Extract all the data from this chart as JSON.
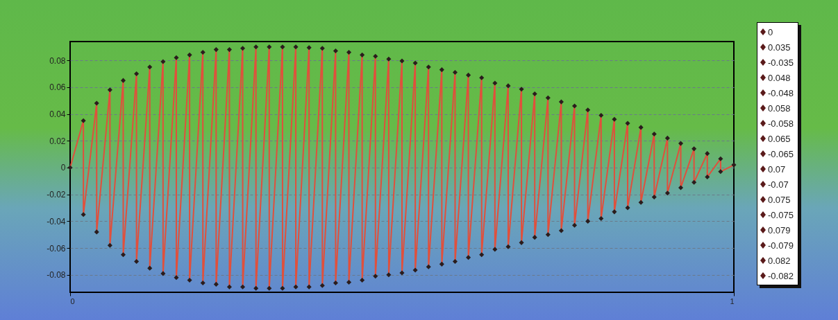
{
  "chart_data": {
    "type": "line",
    "marker": "diamond",
    "grid": "y",
    "xlim": [
      0,
      1
    ],
    "xticks": [
      0,
      1
    ],
    "ylim": [
      -0.093,
      0.094
    ],
    "yticks": [
      -0.08,
      -0.06,
      -0.04,
      -0.02,
      0,
      0.02,
      0.04,
      0.06,
      0.08
    ],
    "annotations": [
      "0",
      "0.035",
      "-0.035",
      "0.048",
      "-0.048",
      "0.058",
      "-0.058",
      "0.065",
      "-0.065",
      "0.07",
      "-0.07",
      "0.075",
      "-0.075",
      "0.079",
      "-0.079",
      "0.082",
      "-0.082"
    ],
    "series": [
      {
        "color": "#e0503c",
        "x": [
          0,
          0.02,
          0.02,
          0.04,
          0.04,
          0.06,
          0.06,
          0.08,
          0.08,
          0.1,
          0.1,
          0.12,
          0.12,
          0.14,
          0.14,
          0.16,
          0.16,
          0.18,
          0.18,
          0.2,
          0.2,
          0.22,
          0.22,
          0.24,
          0.24,
          0.26,
          0.26,
          0.28,
          0.28,
          0.3,
          0.3,
          0.32,
          0.32,
          0.34,
          0.34,
          0.36,
          0.36,
          0.38,
          0.38,
          0.4,
          0.4,
          0.42,
          0.42,
          0.44,
          0.44,
          0.46,
          0.46,
          0.48,
          0.48,
          0.5,
          0.5,
          0.52,
          0.52,
          0.54,
          0.54,
          0.56,
          0.56,
          0.58,
          0.58,
          0.6,
          0.6,
          0.62,
          0.62,
          0.64,
          0.64,
          0.66,
          0.66,
          0.68,
          0.68,
          0.7,
          0.7,
          0.72,
          0.72,
          0.74,
          0.74,
          0.76,
          0.76,
          0.78,
          0.78,
          0.8,
          0.8,
          0.82,
          0.82,
          0.84,
          0.84,
          0.86,
          0.86,
          0.88,
          0.88,
          0.9,
          0.9,
          0.92,
          0.92,
          0.94,
          0.94,
          0.96,
          0.96,
          0.98,
          0.98,
          1
        ],
        "values": [
          0,
          0.035,
          -0.035,
          0.048,
          -0.048,
          0.058,
          -0.058,
          0.065,
          -0.065,
          0.07,
          -0.07,
          0.075,
          -0.075,
          0.079,
          -0.079,
          0.082,
          -0.082,
          0.084,
          -0.084,
          0.086,
          -0.086,
          0.088,
          -0.087,
          0.088,
          -0.089,
          0.089,
          -0.089,
          0.09,
          -0.09,
          0.09,
          -0.09,
          0.09,
          -0.09,
          0.09,
          -0.089,
          0.0895,
          -0.089,
          0.089,
          -0.088,
          0.087,
          -0.086,
          0.086,
          -0.0855,
          0.084,
          -0.084,
          0.083,
          -0.081,
          0.081,
          -0.08,
          0.0795,
          -0.0785,
          0.078,
          -0.0765,
          0.075,
          -0.074,
          0.073,
          -0.072,
          0.071,
          -0.07,
          0.069,
          -0.067,
          0.067,
          -0.065,
          0.063,
          -0.061,
          0.061,
          -0.059,
          0.0585,
          -0.056,
          0.055,
          -0.052,
          0.052,
          -0.05,
          0.049,
          -0.047,
          0.046,
          -0.043,
          0.043,
          -0.04,
          0.039,
          -0.038,
          0.036,
          -0.033,
          0.033,
          -0.03,
          0.03,
          -0.026,
          0.025,
          -0.022,
          0.022,
          -0.019,
          0.018,
          -0.015,
          0.014,
          -0.011,
          0.0105,
          -0.007,
          0.0066,
          -0.003,
          0.002
        ]
      }
    ]
  }
}
